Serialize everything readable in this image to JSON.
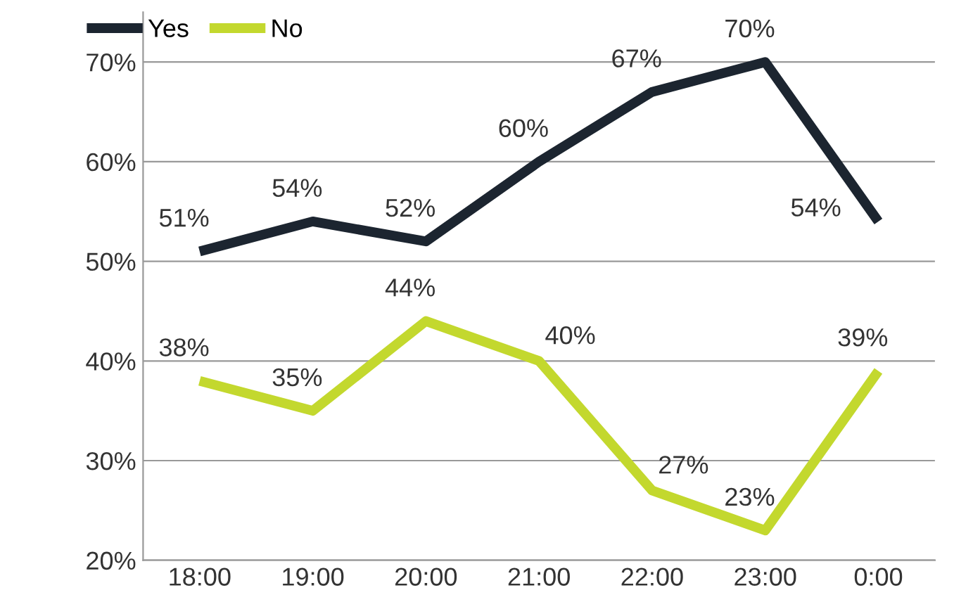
{
  "chart_data": {
    "type": "line",
    "categories": [
      "18:00",
      "19:00",
      "20:00",
      "21:00",
      "22:00",
      "23:00",
      "0:00"
    ],
    "series": [
      {
        "name": "Yes",
        "color": "#1c2530",
        "values": [
          51,
          54,
          52,
          60,
          67,
          70,
          54
        ],
        "value_labels": [
          "51%",
          "54%",
          "52%",
          "60%",
          "67%",
          "70%",
          "54%"
        ]
      },
      {
        "name": "No",
        "color": "#c3d82e",
        "values": [
          38,
          35,
          44,
          40,
          27,
          23,
          39
        ],
        "value_labels": [
          "38%",
          "35%",
          "44%",
          "40%",
          "27%",
          "23%",
          "39%"
        ]
      }
    ],
    "ylim": [
      20,
      75
    ],
    "yticks": [
      {
        "value": 20,
        "label": "20%"
      },
      {
        "value": 30,
        "label": "30%"
      },
      {
        "value": 40,
        "label": "40%"
      },
      {
        "value": 50,
        "label": "50%"
      },
      {
        "value": 60,
        "label": "60%"
      },
      {
        "value": 70,
        "label": "70%"
      }
    ],
    "grid": "y",
    "legend": "top left",
    "marker": "none",
    "line_style": "solid"
  }
}
